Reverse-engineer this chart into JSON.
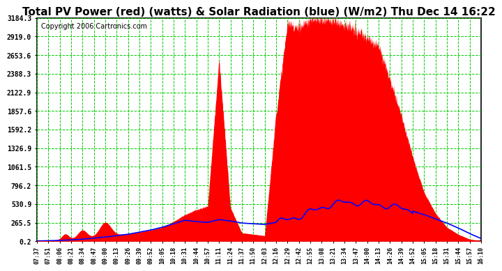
{
  "title": "Total PV Power (red) (watts) & Solar Radiation (blue) (W/m2) Thu Dec 14 16:22",
  "copyright": "Copyright 2006 Cartronics.com",
  "background_color": "#ffffff",
  "plot_bg_color": "#ffffff",
  "grid_color": "#00cc00",
  "y_ticks": [
    0.2,
    265.5,
    530.9,
    796.2,
    1061.5,
    1326.9,
    1592.2,
    1857.6,
    2122.9,
    2388.3,
    2653.6,
    2919.0,
    3184.3
  ],
  "x_labels": [
    "07:37",
    "07:51",
    "08:06",
    "08:21",
    "08:34",
    "08:47",
    "09:00",
    "09:13",
    "09:26",
    "09:39",
    "09:52",
    "10:05",
    "10:18",
    "10:31",
    "10:44",
    "10:57",
    "11:11",
    "11:24",
    "11:37",
    "11:50",
    "12:03",
    "12:16",
    "12:29",
    "12:42",
    "12:55",
    "13:08",
    "13:21",
    "13:34",
    "13:47",
    "14:00",
    "14:13",
    "14:26",
    "14:39",
    "14:52",
    "15:05",
    "15:18",
    "15:31",
    "15:44",
    "15:57",
    "16:10"
  ],
  "pv_color": "#ff0000",
  "solar_color": "#0000ff",
  "title_fontsize": 11,
  "copyright_fontsize": 7,
  "pv_data": [
    10,
    15,
    20,
    30,
    40,
    55,
    70,
    90,
    110,
    130,
    160,
    200,
    280,
    380,
    450,
    500,
    2600,
    480,
    120,
    100,
    80,
    1800,
    3100,
    3050,
    3150,
    3180,
    3150,
    3100,
    3000,
    2900,
    2800,
    2300,
    1800,
    1200,
    700,
    400,
    200,
    100,
    30,
    10
  ],
  "solar_data": [
    5,
    8,
    12,
    20,
    30,
    45,
    60,
    80,
    100,
    130,
    160,
    200,
    250,
    300,
    280,
    270,
    310,
    290,
    260,
    250,
    240,
    270,
    310,
    350,
    420,
    480,
    530,
    560,
    550,
    540,
    520,
    500,
    470,
    430,
    380,
    320,
    260,
    190,
    110,
    40
  ]
}
